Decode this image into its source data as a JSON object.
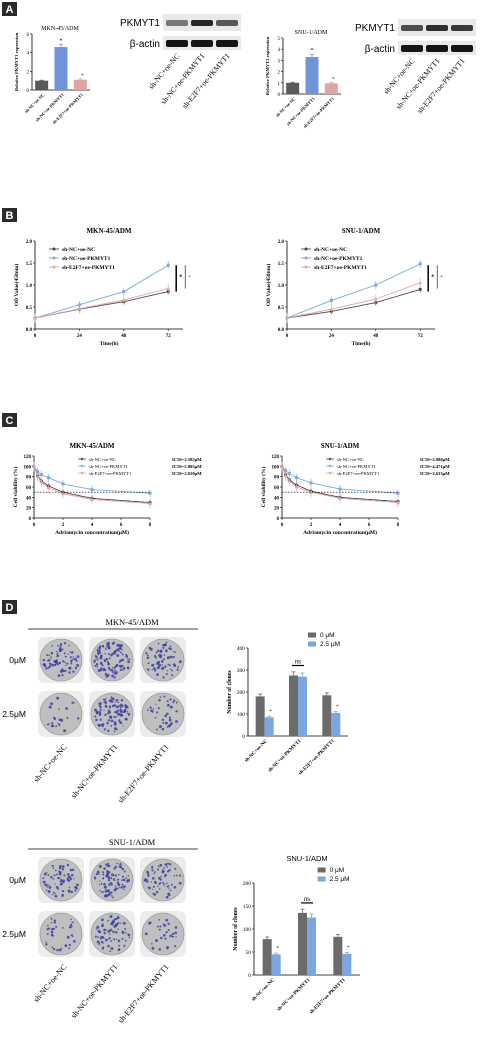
{
  "colors": {
    "gray": "#5a5a5a",
    "blue": "#6f95d8",
    "pink": "#e2a3a3",
    "plate": "#bfbfbf",
    "colony": "#3b3fa0",
    "darkgray": "#4a4a4a",
    "lightblue": "#7aa7dd"
  },
  "panels": {
    "a": {
      "letter": "A",
      "left": {
        "title": "MKN-45/ADM",
        "ylabel": "Relative PKMYT1 expression",
        "star": "*",
        "blot_top": "PKMYT1",
        "blot_bottom": "β-actin",
        "chart_data": {
          "type": "bar",
          "categories": [
            "sh-NC+oe-NC",
            "sh-NC+oe-PKMYT1",
            "sh-E2F7+oe-PKMYT1"
          ],
          "values": [
            1.0,
            4.6,
            1.1
          ],
          "errors": [
            0.05,
            0.3,
            0.1
          ],
          "ylim": [
            0,
            6
          ],
          "yticks": [
            "0",
            "2",
            "4",
            "6"
          ],
          "ylabel": "Relative PKMYT1 expression",
          "title": "MKN-45/ADM"
        }
      },
      "right": {
        "title": "SNU-1/ADM",
        "ylabel": "Relative PKMYT1 expression",
        "star": "*",
        "blot_top": "PKMYT1",
        "blot_bottom": "β-actin",
        "chart_data": {
          "type": "bar",
          "categories": [
            "sh-NC+oe-NC",
            "sh-NC+oe-PKMYT1",
            "sh-E2F7+oe-PKMYT1"
          ],
          "values": [
            1.0,
            3.3,
            0.95
          ],
          "errors": [
            0.05,
            0.25,
            0.08
          ],
          "ylim": [
            0,
            5
          ],
          "yticks": [
            "0",
            "1",
            "2",
            "3",
            "4",
            "5"
          ],
          "ylabel": "Relative PKMYT1 expression",
          "title": "SNU-1/ADM"
        }
      },
      "blot_labels": [
        "sh-NC+oe-NC",
        "sh-NC+oe-PKMYT1",
        "sh-E2F7+oe-PKMYT1"
      ]
    },
    "b": {
      "letter": "B",
      "left": {
        "star": "*",
        "chart_data": {
          "type": "line",
          "title": "MKN-45/ADM",
          "xlabel": "Time(h)",
          "ylabel": "OD Value(450nm)",
          "x": [
            0,
            24,
            48,
            72
          ],
          "xticks": [
            "0",
            "24",
            "48",
            "72"
          ],
          "yticks": [
            "0.0",
            "0.5",
            "1.0",
            "1.5",
            "2.0"
          ],
          "ylim": [
            0,
            2
          ],
          "xlim": [
            0,
            80
          ],
          "series": [
            {
              "name": "sh-NC+oe-NC",
              "values": [
                0.25,
                0.45,
                0.62,
                0.85
              ]
            },
            {
              "name": "sh-NC+oe-PKMYT1",
              "values": [
                0.25,
                0.55,
                0.85,
                1.45
              ]
            },
            {
              "name": "sh-E2F7+oe-PKMYT1",
              "values": [
                0.25,
                0.46,
                0.66,
                0.92
              ]
            }
          ]
        }
      },
      "right": {
        "star": "*",
        "chart_data": {
          "type": "line",
          "title": "SNU-1/ADM",
          "xlabel": "Time(h)",
          "ylabel": "OD Value(450nm)",
          "x": [
            0,
            24,
            48,
            72
          ],
          "xticks": [
            "0",
            "24",
            "48",
            "72"
          ],
          "yticks": [
            "0.0",
            "0.5",
            "1.0",
            "1.5",
            "2.0"
          ],
          "ylim": [
            0,
            2
          ],
          "xlim": [
            0,
            80
          ],
          "series": [
            {
              "name": "sh-NC+oe-NC",
              "values": [
                0.25,
                0.4,
                0.6,
                0.9
              ]
            },
            {
              "name": "sh-NC+oe-PKMYT1",
              "values": [
                0.25,
                0.65,
                1.0,
                1.48
              ]
            },
            {
              "name": "sh-E2F7+oe-PKMYT1",
              "values": [
                0.25,
                0.45,
                0.68,
                1.05
              ]
            }
          ]
        }
      }
    },
    "c": {
      "letter": "C",
      "left": {
        "chart_data": {
          "type": "line",
          "title": "MKN-45/ADM",
          "xlabel": "Adriamycin concentration(μM)",
          "ylabel": "Cell viability (%)",
          "xticks": [
            "0",
            "2",
            "4",
            "6",
            "8"
          ],
          "yticks": [
            "0",
            "20",
            "40",
            "60",
            "80",
            "100",
            "120"
          ],
          "xlim": [
            0,
            8
          ],
          "ylim": [
            0,
            120
          ],
          "x": [
            0,
            0.25,
            0.5,
            1,
            2,
            4,
            8
          ],
          "series": [
            {
              "name": "sh-NC+oe-NC",
              "ic50": "IC50=2.585μM",
              "values": [
                100,
                82,
                72,
                62,
                50,
                38,
                30
              ]
            },
            {
              "name": "sh-NC+oe-PKMYT1",
              "ic50": "IC50=5.805μM",
              "values": [
                100,
                90,
                84,
                78,
                66,
                55,
                48
              ]
            },
            {
              "name": "sh-E2F7+oe-PKMYT1",
              "ic50": "IC50=2.010μM",
              "values": [
                100,
                80,
                70,
                58,
                47,
                36,
                28
              ]
            }
          ]
        }
      },
      "right": {
        "chart_data": {
          "type": "line",
          "title": "SNU-1/ADM",
          "xlabel": "Adriamycin concentration(μM)",
          "ylabel": "Cell viability (%)",
          "xticks": [
            "0",
            "2",
            "4",
            "6",
            "8"
          ],
          "yticks": [
            "0",
            "20",
            "40",
            "60",
            "80",
            "100",
            "120"
          ],
          "xlim": [
            0,
            8
          ],
          "ylim": [
            0,
            120
          ],
          "x": [
            0,
            0.25,
            0.5,
            1,
            2,
            4,
            8
          ],
          "series": [
            {
              "name": "sh-NC+oe-NC",
              "ic50": "IC50=2.980μM",
              "values": [
                100,
                84,
                74,
                64,
                52,
                40,
                32
              ]
            },
            {
              "name": "sh-NC+oe-PKMYT1",
              "ic50": "IC50=4.471μM",
              "values": [
                100,
                92,
                86,
                78,
                68,
                56,
                48
              ]
            },
            {
              "name": "sh-E2F7+oe-PKMYT1",
              "ic50": "IC50=2.633μM",
              "values": [
                100,
                82,
                72,
                60,
                50,
                38,
                30
              ]
            }
          ]
        }
      }
    },
    "d": {
      "letter": "D",
      "top": {
        "cell_title": "MKN-45/ADM",
        "row_labels": [
          "0μM",
          "2.5μM"
        ],
        "col_labels": [
          "sh-NC+oe-NC",
          "sh-NC+oe-PKMYT1",
          "sh-E2F7+oe-PKMYT1"
        ],
        "ns": "ns",
        "star": "*",
        "chart_data": {
          "type": "bar",
          "ylabel": "Number of clones",
          "categories": [
            "sh-NC+oe-NC",
            "sh-NC+oe-PKMYT1",
            "sh-E2F7+oe-PKMYT1"
          ],
          "ylim": [
            0,
            400
          ],
          "yticks": [
            "0",
            "100",
            "200",
            "300",
            "400"
          ],
          "series": [
            {
              "name": "0 μM",
              "values": [
                180,
                275,
                185
              ]
            },
            {
              "name": "2.5 μM",
              "values": [
                85,
                270,
                105
              ]
            }
          ]
        }
      },
      "bottom": {
        "cell_title": "SNU-1/ADM",
        "row_labels": [
          "0μM",
          "2.5μM"
        ],
        "col_labels": [
          "sh-NC+oe-NC",
          "sh-NC+oe-PKMYT1",
          "sh-E2F7+oe-PKMYT1"
        ],
        "ns": "ns",
        "star": "*",
        "chart_data": {
          "type": "bar",
          "title": "SNU-1/ADM",
          "ylabel": "Number of clones",
          "categories": [
            "sh-NC+oe-NC",
            "sh-NC+oe-PKMYT1",
            "sh-E2F7+oe-PKMYT1"
          ],
          "ylim": [
            0,
            200
          ],
          "yticks": [
            "0",
            "50",
            "100",
            "150",
            "200"
          ],
          "series": [
            {
              "name": "0 μM",
              "values": [
                78,
                135,
                83
              ]
            },
            {
              "name": "2.5 μM",
              "values": [
                45,
                125,
                46
              ]
            }
          ]
        }
      }
    }
  }
}
